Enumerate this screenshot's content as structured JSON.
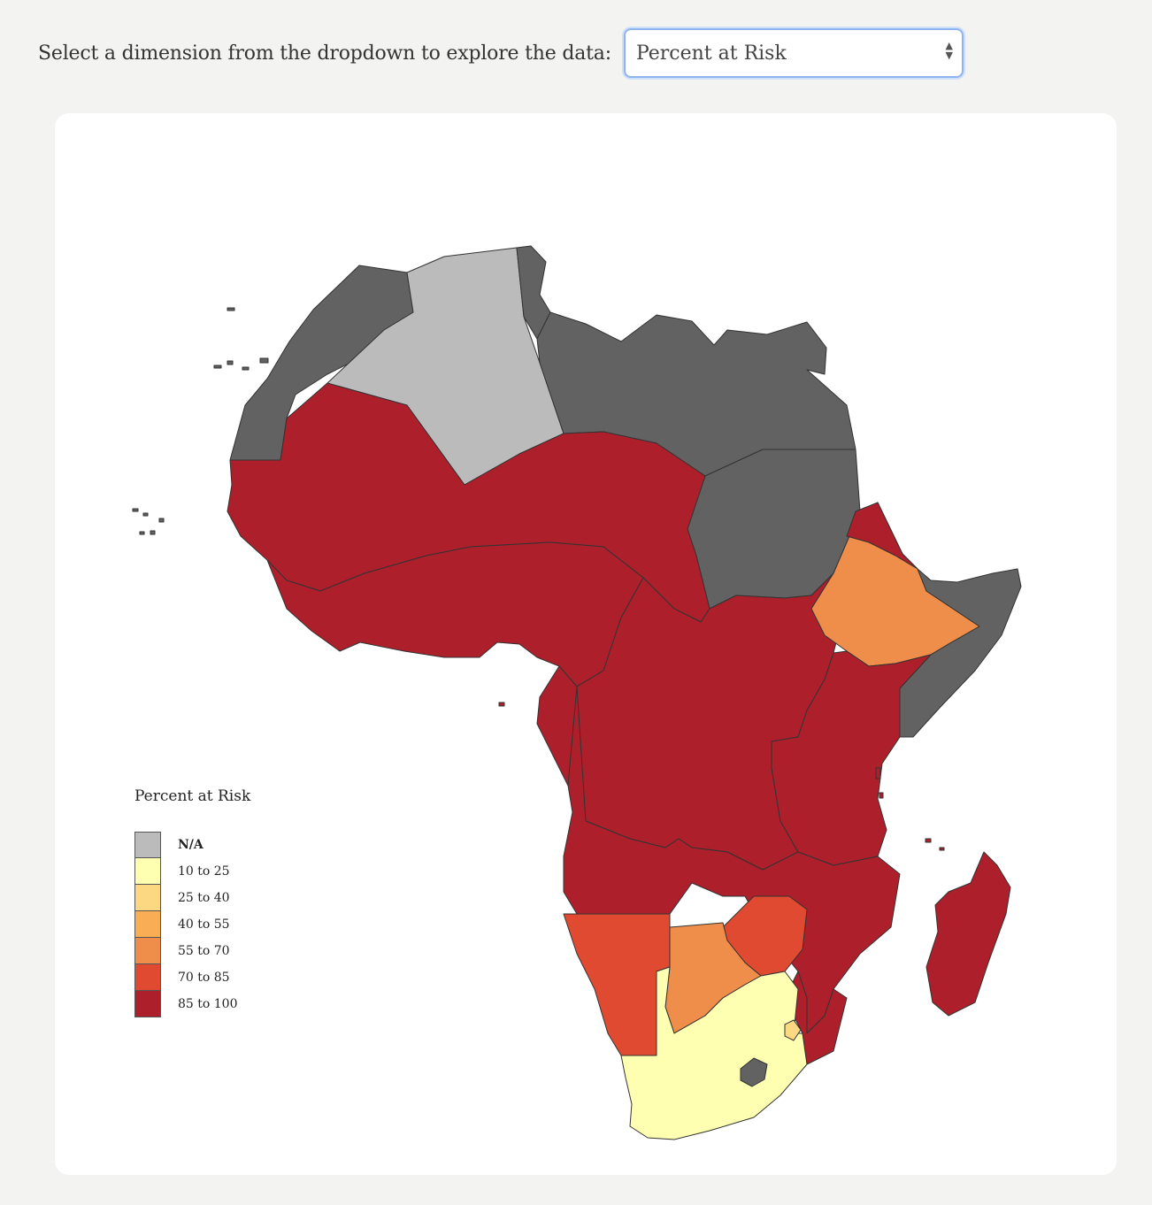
{
  "controls": {
    "prompt": "Select a dimension from the dropdown to explore the data:",
    "dropdown": {
      "selected": "Percent at Risk"
    }
  },
  "legend": {
    "title": "Percent at Risk",
    "items": [
      {
        "label": "N/A",
        "color": "#bbbbbb"
      },
      {
        "label": "10 to 25",
        "color": "#ffffb2"
      },
      {
        "label": "25 to 40",
        "color": "#fdd882"
      },
      {
        "label": "40 to 55",
        "color": "#f9ad55"
      },
      {
        "label": "55 to 70",
        "color": "#ef8d4a"
      },
      {
        "label": "70 to 85",
        "color": "#df4a30"
      },
      {
        "label": "85 to 100",
        "color": "#ad1f2b"
      }
    ]
  },
  "colors": {
    "no_data": "#626262",
    "borders": "#333333"
  }
}
